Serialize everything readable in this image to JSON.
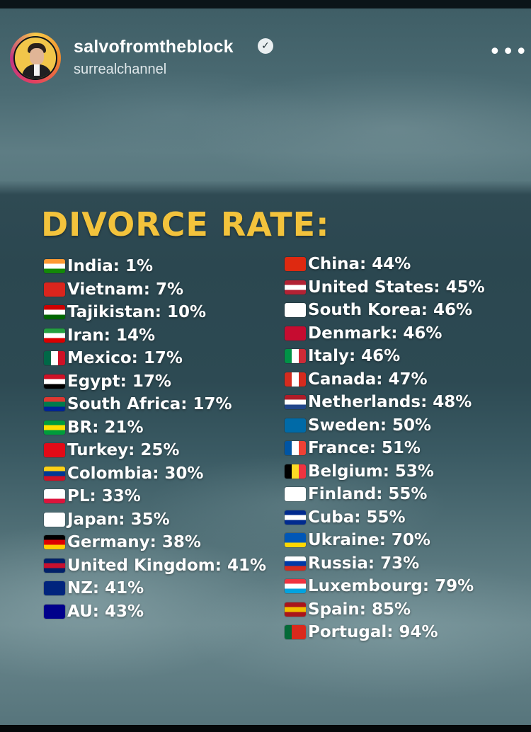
{
  "header": {
    "username": "salvofromtheblock",
    "subtitle": "surrealchannel",
    "verified": true,
    "more_label": "•••"
  },
  "title": "DIVORCE RATE:",
  "columns": {
    "left": [
      {
        "country": "India: 1%",
        "flag": "india",
        "colors": [
          "#ff9933",
          "#ffffff",
          "#138808"
        ]
      },
      {
        "country": "Vietnam: 7%",
        "flag": "vietnam",
        "colors": [
          "#da251d",
          "#da251d",
          "#da251d"
        ]
      },
      {
        "country": "Tajikistan: 10%",
        "flag": "tajikistan",
        "colors": [
          "#cc0000",
          "#ffffff",
          "#006600"
        ]
      },
      {
        "country": "Iran: 14%",
        "flag": "iran",
        "colors": [
          "#239f40",
          "#ffffff",
          "#da0000"
        ]
      },
      {
        "country": "Mexico: 17%",
        "flag": "mexico",
        "colors": [
          "#006847",
          "#ffffff",
          "#ce1126"
        ],
        "vertical": true
      },
      {
        "country": "Egypt: 17%",
        "flag": "egypt",
        "colors": [
          "#ce1126",
          "#ffffff",
          "#000000"
        ]
      },
      {
        "country": "South Africa: 17%",
        "flag": "south-africa",
        "colors": [
          "#de3831",
          "#007a4d",
          "#002395"
        ]
      },
      {
        "country": "BR: 21%",
        "flag": "brazil",
        "colors": [
          "#009c3b",
          "#ffdf00",
          "#009c3b"
        ]
      },
      {
        "country": "Turkey: 25%",
        "flag": "turkey",
        "colors": [
          "#e30a17",
          "#e30a17",
          "#e30a17"
        ]
      },
      {
        "country": "Colombia: 30%",
        "flag": "colombia",
        "colors": [
          "#fcd116",
          "#003893",
          "#ce1126"
        ]
      },
      {
        "country": "PL: 33%",
        "flag": "poland",
        "colors": [
          "#ffffff",
          "#ffffff",
          "#dc143c"
        ]
      },
      {
        "country": "Japan: 35%",
        "flag": "japan",
        "colors": [
          "#ffffff",
          "#ffffff",
          "#ffffff"
        ]
      },
      {
        "country": "Germany: 38%",
        "flag": "germany",
        "colors": [
          "#000000",
          "#dd0000",
          "#ffce00"
        ]
      },
      {
        "country": "United Kingdom: 41%",
        "flag": "united-kingdom",
        "colors": [
          "#012169",
          "#c8102e",
          "#012169"
        ]
      },
      {
        "country": "NZ: 41%",
        "flag": "new-zealand",
        "colors": [
          "#00247d",
          "#00247d",
          "#00247d"
        ]
      },
      {
        "country": "AU: 43%",
        "flag": "australia",
        "colors": [
          "#00008b",
          "#00008b",
          "#00008b"
        ]
      }
    ],
    "right": [
      {
        "country": "China: 44%",
        "flag": "china",
        "colors": [
          "#de2910",
          "#de2910",
          "#de2910"
        ]
      },
      {
        "country": "United States: 45%",
        "flag": "united-states",
        "colors": [
          "#b22234",
          "#ffffff",
          "#b22234"
        ]
      },
      {
        "country": "South Korea: 46%",
        "flag": "south-korea",
        "colors": [
          "#ffffff",
          "#ffffff",
          "#ffffff"
        ]
      },
      {
        "country": "Denmark: 46%",
        "flag": "denmark",
        "colors": [
          "#c60c30",
          "#c60c30",
          "#c60c30"
        ]
      },
      {
        "country": "Italy: 46%",
        "flag": "italy",
        "colors": [
          "#009246",
          "#ffffff",
          "#ce2b37"
        ],
        "vertical": true
      },
      {
        "country": "Canada: 47%",
        "flag": "canada",
        "colors": [
          "#d52b1e",
          "#ffffff",
          "#d52b1e"
        ],
        "vertical": true
      },
      {
        "country": "Netherlands: 48%",
        "flag": "netherlands",
        "colors": [
          "#ae1c28",
          "#ffffff",
          "#21468b"
        ]
      },
      {
        "country": "Sweden: 50%",
        "flag": "sweden",
        "colors": [
          "#006aa7",
          "#006aa7",
          "#006aa7"
        ]
      },
      {
        "country": "France: 51%",
        "flag": "france",
        "colors": [
          "#0055a4",
          "#ffffff",
          "#ef4135"
        ],
        "vertical": true
      },
      {
        "country": "Belgium: 53%",
        "flag": "belgium",
        "colors": [
          "#000000",
          "#fdda24",
          "#ef3340"
        ],
        "vertical": true
      },
      {
        "country": "Finland: 55%",
        "flag": "finland",
        "colors": [
          "#ffffff",
          "#ffffff",
          "#ffffff"
        ]
      },
      {
        "country": "Cuba: 55%",
        "flag": "cuba",
        "colors": [
          "#002a8f",
          "#ffffff",
          "#002a8f"
        ]
      },
      {
        "country": "Ukraine: 70%",
        "flag": "ukraine",
        "colors": [
          "#0057b7",
          "#0057b7",
          "#ffd700"
        ]
      },
      {
        "country": "Russia: 73%",
        "flag": "russia",
        "colors": [
          "#ffffff",
          "#0039a6",
          "#d52b1e"
        ]
      },
      {
        "country": "Luxembourg: 79%",
        "flag": "luxembourg",
        "colors": [
          "#ef3340",
          "#ffffff",
          "#00a3e0"
        ]
      },
      {
        "country": "Spain: 85%",
        "flag": "spain",
        "colors": [
          "#aa151b",
          "#f1bf00",
          "#aa151b"
        ]
      },
      {
        "country": "Portugal: 94%",
        "flag": "portugal",
        "colors": [
          "#046a38",
          "#da291c",
          "#da291c"
        ],
        "vertical": true
      }
    ]
  }
}
